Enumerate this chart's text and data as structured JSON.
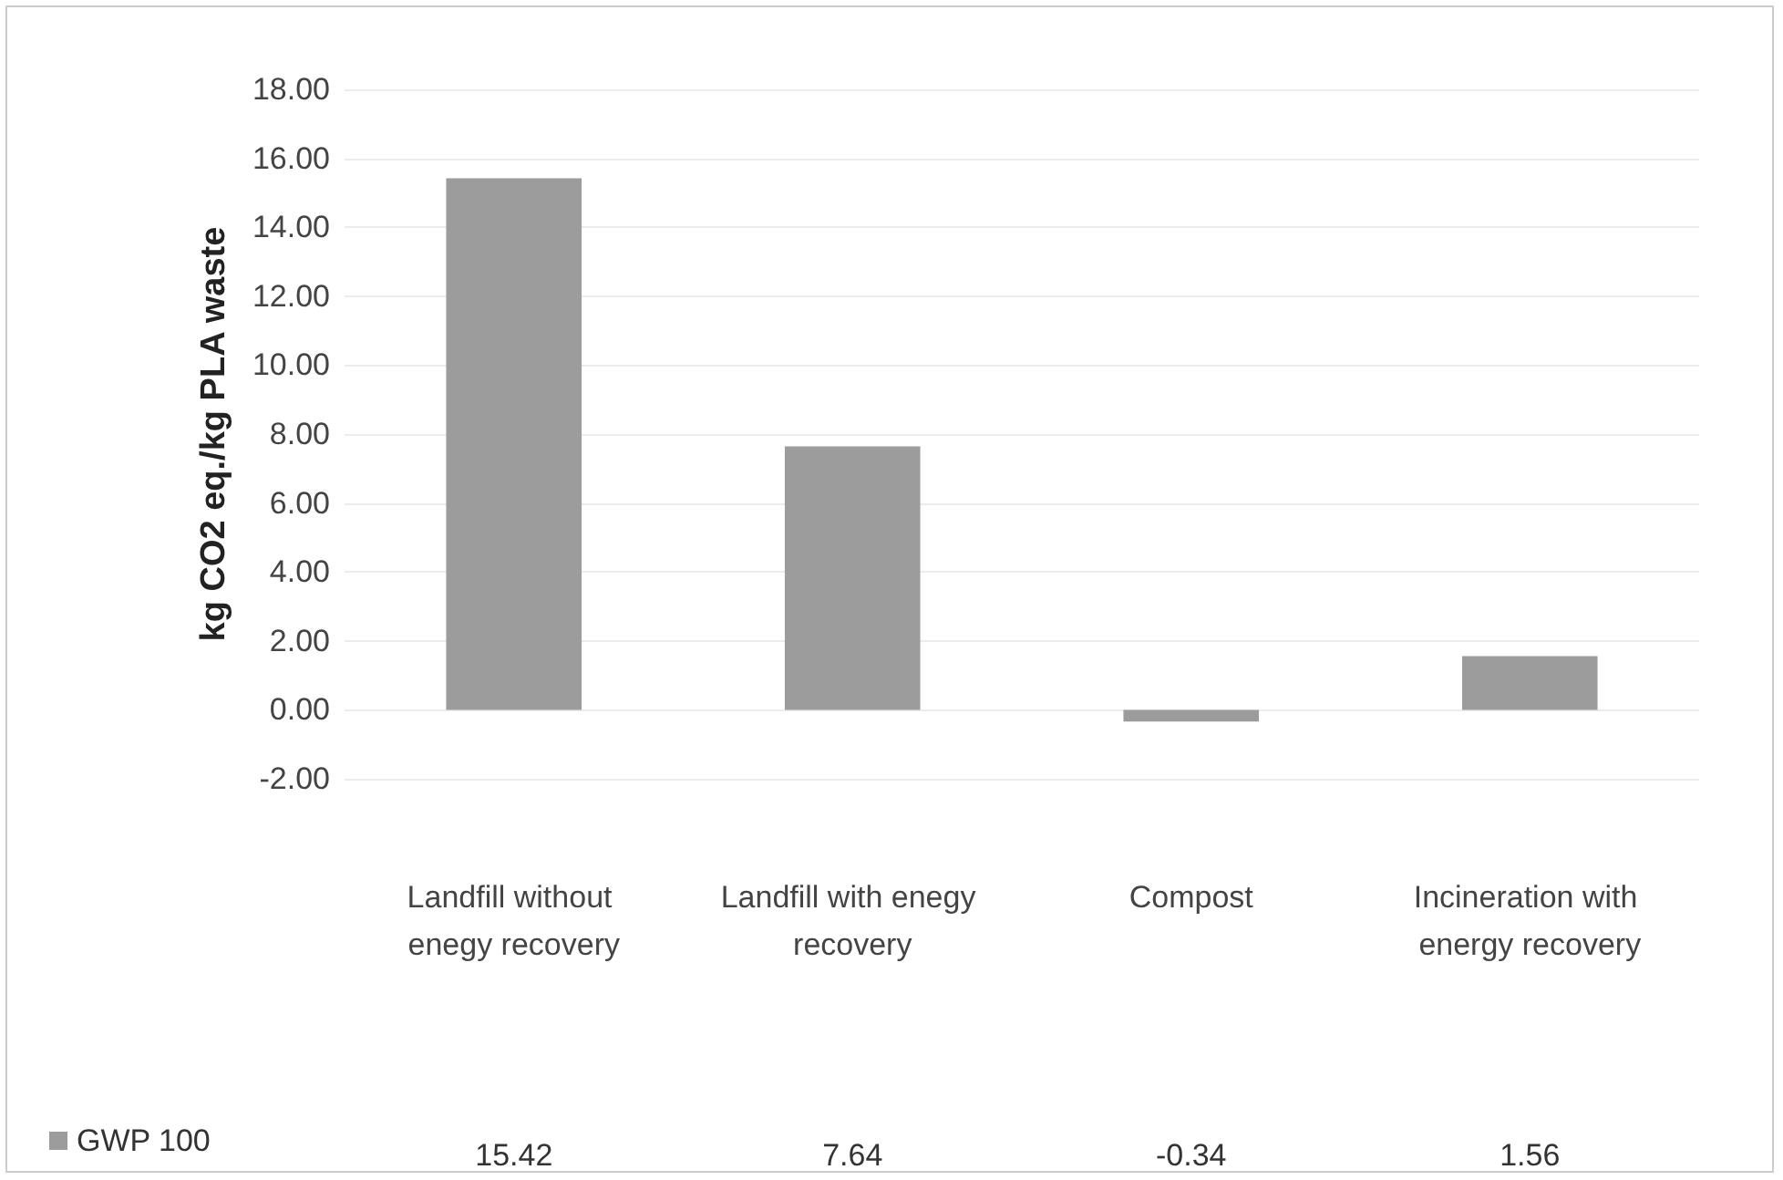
{
  "chart_data": {
    "type": "bar",
    "ylabel": "kg CO2 eq./kg PLA waste",
    "categories": [
      "Landfill without enegy recovery",
      "Landfill with enegy recovery",
      "Compost",
      "Incineration with energy recovery"
    ],
    "series": [
      {
        "name": "GWP 100",
        "color": "#9c9c9c",
        "values": [
          15.42,
          7.64,
          -0.34,
          1.56
        ]
      }
    ],
    "ylim": [
      -2,
      18
    ],
    "yticks": [
      {
        "value": -2,
        "label": "-2.00"
      },
      {
        "value": 0,
        "label": "0.00"
      },
      {
        "value": 2,
        "label": "2.00"
      },
      {
        "value": 4,
        "label": "4.00"
      },
      {
        "value": 6,
        "label": "6.00"
      },
      {
        "value": 8,
        "label": "8.00"
      },
      {
        "value": 10,
        "label": "10.00"
      },
      {
        "value": 12,
        "label": "12.00"
      },
      {
        "value": 14,
        "label": "14.00"
      },
      {
        "value": 16,
        "label": "16.00"
      },
      {
        "value": 18,
        "label": "18.00"
      }
    ],
    "grid": "y",
    "legend": "bottom left",
    "data_labels": true
  }
}
